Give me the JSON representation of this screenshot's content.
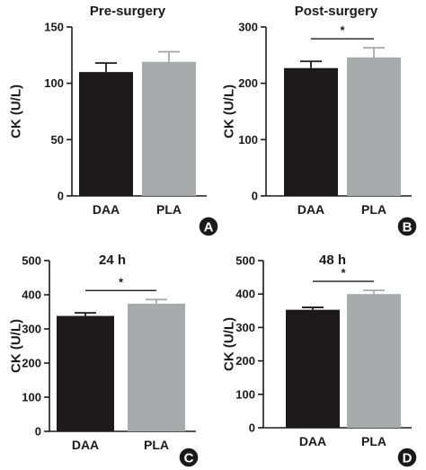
{
  "chart_data": [
    {
      "panel": "A",
      "type": "bar",
      "title": "Pre-surgery",
      "ylabel": "CK (U/L)",
      "categories": [
        "DAA",
        "PLA"
      ],
      "values": [
        110,
        119
      ],
      "errors": [
        8,
        9
      ],
      "colors": [
        "#1c1a1b",
        "#a9aaac"
      ],
      "ylim": [
        0,
        150
      ],
      "yticks": [
        0,
        50,
        100,
        150
      ],
      "significance": null
    },
    {
      "panel": "B",
      "type": "bar",
      "title": "Post-surgery",
      "ylabel": "CK (U/L)",
      "categories": [
        "DAA",
        "PLA"
      ],
      "values": [
        227,
        246
      ],
      "errors": [
        12,
        17
      ],
      "colors": [
        "#1c1a1b",
        "#a9aaac"
      ],
      "ylim": [
        0,
        300
      ],
      "yticks": [
        0,
        100,
        200,
        300
      ],
      "significance": "*"
    },
    {
      "panel": "C",
      "type": "bar",
      "title": "24 h",
      "ylabel": "CK (U/L)",
      "categories": [
        "DAA",
        "PLA"
      ],
      "values": [
        338,
        374
      ],
      "errors": [
        9,
        12
      ],
      "colors": [
        "#1c1a1b",
        "#a9aaac"
      ],
      "ylim": [
        0,
        500
      ],
      "yticks": [
        0,
        100,
        200,
        300,
        400,
        500
      ],
      "significance": "*"
    },
    {
      "panel": "D",
      "type": "bar",
      "title": "48 h",
      "ylabel": "CK (U/L)",
      "categories": [
        "DAA",
        "PLA"
      ],
      "values": [
        353,
        400
      ],
      "errors": [
        7,
        11
      ],
      "colors": [
        "#1c1a1b",
        "#a9aaac"
      ],
      "ylim": [
        0,
        500
      ],
      "yticks": [
        0,
        100,
        200,
        300,
        400,
        500
      ],
      "significance": "*"
    }
  ]
}
